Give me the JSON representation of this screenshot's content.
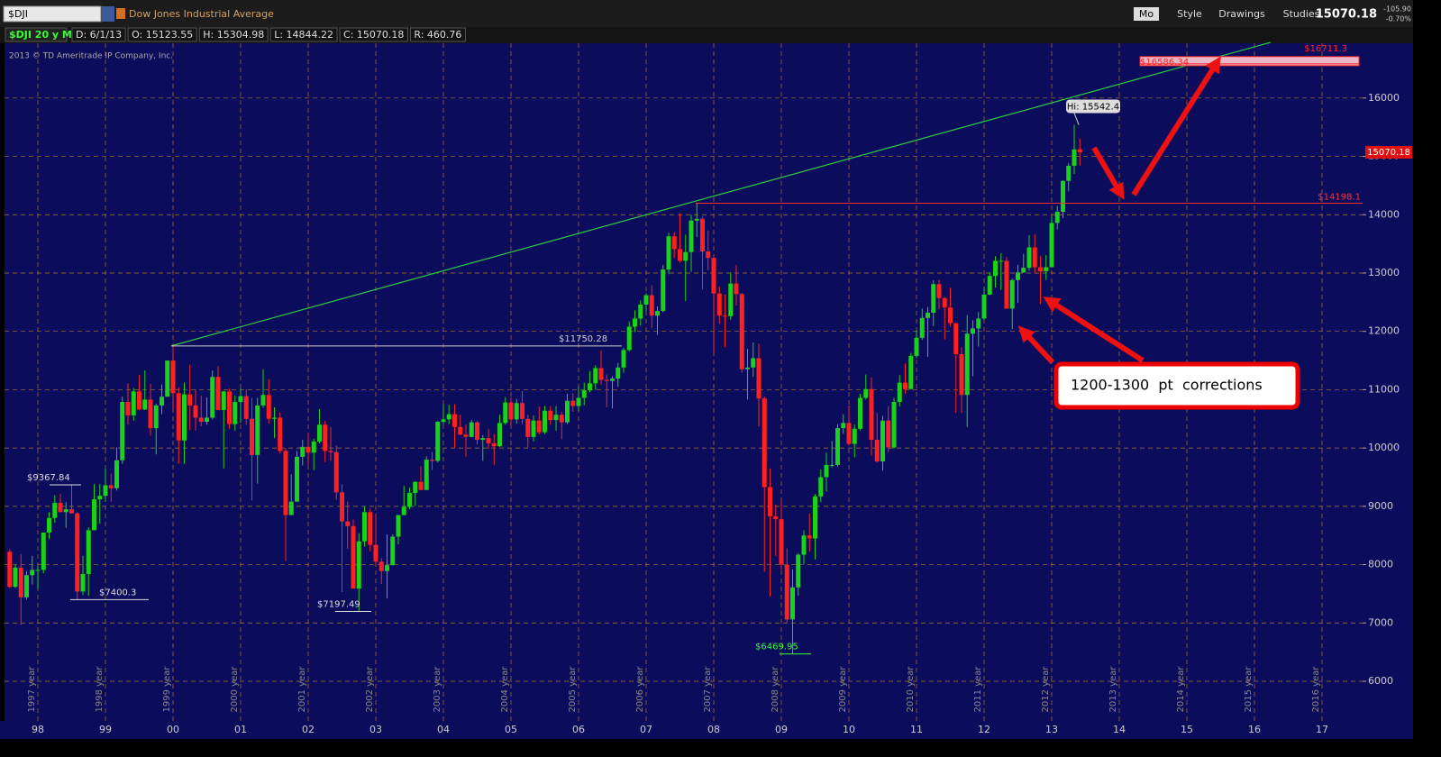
{
  "toolbar": {
    "symbol": "$DJI",
    "description": "Dow Jones Industrial Average",
    "buttons": [
      "Mo",
      "Style",
      "Drawings",
      "Studies"
    ],
    "last": "15070.18",
    "change": "-105.90",
    "change_pct": "-0.70%"
  },
  "chart_data": {
    "type": "candlestick",
    "title": "$DJI 20 y M",
    "info": [
      "D: 6/1/13",
      "O: 15123.55",
      "H: 15304.98",
      "L: 14844.22",
      "C: 15070.18",
      "R: 460.76"
    ],
    "watermark": "2013 © TD Ameritrade IP Company, Inc.",
    "categories": [
      null,
      null,
      null,
      null,
      null,
      "98",
      null,
      null,
      null,
      null,
      null,
      null,
      null,
      null,
      null,
      null,
      null,
      "99",
      null,
      null,
      null,
      null,
      null,
      null,
      null,
      null,
      null,
      null,
      null,
      "00",
      null,
      null,
      null,
      null,
      null,
      null,
      null,
      null,
      null,
      null,
      null,
      "01",
      null,
      null,
      null,
      null,
      null,
      null,
      null,
      null,
      null,
      null,
      null,
      "02",
      null,
      null,
      null,
      null,
      null,
      null,
      null,
      null,
      null,
      null,
      null,
      "03",
      null,
      null,
      null,
      null,
      null,
      null,
      null,
      null,
      null,
      null,
      null,
      "04",
      null,
      null,
      null,
      null,
      null,
      null,
      null,
      null,
      null,
      null,
      null,
      "05",
      null,
      null,
      null,
      null,
      null,
      null,
      null,
      null,
      null,
      null,
      null,
      "06",
      null,
      null,
      null,
      null,
      null,
      null,
      null,
      null,
      null,
      null,
      null,
      "07",
      null,
      null,
      null,
      null,
      null,
      null,
      null,
      null,
      null,
      null,
      null,
      "08",
      null,
      null,
      null,
      null,
      null,
      null,
      null,
      null,
      null,
      null,
      null,
      "09",
      null,
      null,
      null,
      null,
      null,
      null,
      null,
      null,
      null,
      null,
      null,
      "10",
      null,
      null,
      null,
      null,
      null,
      null,
      null,
      null,
      null,
      null,
      null,
      "11",
      null,
      null,
      null,
      null,
      null,
      null,
      null,
      null,
      null,
      null,
      null,
      "12",
      null,
      null,
      null,
      null,
      null,
      null,
      null,
      null,
      null,
      null,
      null,
      "13",
      null,
      null,
      null,
      null,
      null,
      null,
      null,
      null,
      null,
      null,
      null,
      "14",
      null,
      null,
      null,
      null,
      null,
      null,
      null,
      null,
      null,
      null,
      null,
      "15",
      null,
      null,
      null,
      null,
      null,
      null,
      null,
      null,
      null,
      null,
      null,
      "16",
      null,
      null,
      null,
      null,
      null,
      null,
      null,
      null,
      null,
      null,
      null,
      "17",
      null,
      null,
      null,
      null,
      null,
      null
    ],
    "ohlc": [
      [
        8220,
        8260,
        7600,
        7620
      ],
      [
        7620,
        8000,
        7600,
        7950
      ],
      [
        7950,
        8180,
        6970,
        7440
      ],
      [
        7440,
        7890,
        7400,
        7820
      ],
      [
        7820,
        8150,
        7660,
        7910
      ],
      [
        7910,
        7980,
        7580,
        7910
      ],
      [
        7910,
        8550,
        7850,
        8550
      ],
      [
        8550,
        8900,
        8440,
        8800
      ],
      [
        8800,
        9190,
        8720,
        9060
      ],
      [
        9060,
        9210,
        8900,
        8900
      ],
      [
        8900,
        9070,
        8630,
        8950
      ],
      [
        8950,
        9367.84,
        8880,
        8880
      ],
      [
        8880,
        8900,
        7400.3,
        7540
      ],
      [
        7540,
        8150,
        7480,
        7840
      ],
      [
        7840,
        8640,
        7470,
        8590
      ],
      [
        8590,
        9380,
        8590,
        9120
      ],
      [
        9120,
        9380,
        8700,
        9180
      ],
      [
        9180,
        9650,
        9080,
        9360
      ],
      [
        9360,
        9560,
        9080,
        9310
      ],
      [
        9310,
        10010,
        9270,
        9790
      ],
      [
        9790,
        10880,
        9730,
        10790
      ],
      [
        10790,
        11110,
        10400,
        10560
      ],
      [
        10560,
        11030,
        10470,
        10970
      ],
      [
        10970,
        11250,
        10650,
        10660
      ],
      [
        10660,
        11330,
        10650,
        10830
      ],
      [
        10830,
        11100,
        10210,
        10340
      ],
      [
        10340,
        10760,
        9890,
        10730
      ],
      [
        10730,
        11090,
        10580,
        10880
      ],
      [
        10880,
        11500,
        10900,
        11500
      ],
      [
        11500,
        11750.28,
        10660,
        10940
      ],
      [
        10940,
        11040,
        9730,
        10130
      ],
      [
        10130,
        11120,
        9730,
        10920
      ],
      [
        10920,
        11430,
        10310,
        10730
      ],
      [
        10730,
        11000,
        10300,
        10520
      ],
      [
        10520,
        10900,
        10370,
        10450
      ],
      [
        10450,
        10870,
        10400,
        10520
      ],
      [
        10520,
        11330,
        10490,
        11220
      ],
      [
        11220,
        11400,
        10650,
        10650
      ],
      [
        10650,
        10980,
        9650,
        10970
      ],
      [
        10970,
        11020,
        10330,
        10410
      ],
      [
        10410,
        10900,
        10300,
        10790
      ],
      [
        10790,
        11020,
        10430,
        10890
      ],
      [
        10890,
        11010,
        10400,
        10500
      ],
      [
        10500,
        10860,
        9100,
        9880
      ],
      [
        9880,
        10860,
        9390,
        10730
      ],
      [
        10730,
        11350,
        10690,
        10910
      ],
      [
        10910,
        11180,
        10420,
        10500
      ],
      [
        10500,
        10700,
        10170,
        10520
      ],
      [
        10520,
        10610,
        9910,
        9950
      ],
      [
        9950,
        10000,
        8060,
        8850
      ],
      [
        8850,
        9550,
        8850,
        9080
      ],
      [
        9080,
        9950,
        9080,
        9850
      ],
      [
        9850,
        10140,
        9700,
        10020
      ],
      [
        10020,
        10260,
        9710,
        9920
      ],
      [
        9920,
        10160,
        9620,
        10110
      ],
      [
        10110,
        10670,
        10080,
        10400
      ],
      [
        10400,
        10470,
        9760,
        9950
      ],
      [
        9950,
        10360,
        9780,
        9930
      ],
      [
        9930,
        10040,
        9110,
        9240
      ],
      [
        9240,
        9380,
        7530,
        8740
      ],
      [
        8740,
        9080,
        8270,
        8660
      ],
      [
        8660,
        8770,
        7590,
        7590
      ],
      [
        7590,
        8540,
        7197.49,
        8400
      ],
      [
        8400,
        9000,
        8310,
        8900
      ],
      [
        8900,
        8960,
        8230,
        8340
      ],
      [
        8340,
        8870,
        7990,
        8050
      ],
      [
        8050,
        8110,
        7670,
        7890
      ],
      [
        7890,
        8520,
        7420,
        7990
      ],
      [
        7990,
        8520,
        7990,
        8480
      ],
      [
        8480,
        8850,
        8350,
        8850
      ],
      [
        8850,
        9350,
        8850,
        8990
      ],
      [
        8990,
        9320,
        8950,
        9230
      ],
      [
        9230,
        9430,
        9010,
        9420
      ],
      [
        9420,
        9690,
        9280,
        9280
      ],
      [
        9280,
        9860,
        9280,
        9800
      ],
      [
        9800,
        9930,
        9620,
        9780
      ],
      [
        9780,
        10460,
        9750,
        10450
      ],
      [
        10450,
        10750,
        10410,
        10490
      ],
      [
        10490,
        10740,
        10410,
        10580
      ],
      [
        10580,
        10750,
        10000,
        10360
      ],
      [
        10360,
        10570,
        10220,
        10230
      ],
      [
        10230,
        10400,
        9850,
        10190
      ],
      [
        10190,
        10480,
        10180,
        10440
      ],
      [
        10440,
        10460,
        10060,
        10140
      ],
      [
        10140,
        10220,
        9780,
        10170
      ],
      [
        10170,
        10330,
        9990,
        10080
      ],
      [
        10080,
        10240,
        9710,
        10030
      ],
      [
        10030,
        10570,
        10020,
        10430
      ],
      [
        10430,
        10870,
        10400,
        10780
      ],
      [
        10780,
        10870,
        10370,
        10490
      ],
      [
        10490,
        10840,
        10420,
        10770
      ],
      [
        10770,
        10980,
        10410,
        10500
      ],
      [
        10500,
        10570,
        10010,
        10190
      ],
      [
        10190,
        10560,
        10110,
        10470
      ],
      [
        10470,
        10710,
        10230,
        10270
      ],
      [
        10270,
        10720,
        10240,
        10640
      ],
      [
        10640,
        10720,
        10400,
        10480
      ],
      [
        10480,
        10720,
        10300,
        10570
      ],
      [
        10570,
        10620,
        10150,
        10440
      ],
      [
        10440,
        10930,
        10410,
        10810
      ],
      [
        10810,
        10940,
        10620,
        10720
      ],
      [
        10720,
        11050,
        10640,
        10860
      ],
      [
        10860,
        11120,
        10730,
        10990
      ],
      [
        10990,
        11320,
        10960,
        11110
      ],
      [
        11110,
        11420,
        11000,
        11370
      ],
      [
        11370,
        11670,
        11080,
        11170
      ],
      [
        11170,
        11260,
        10700,
        11150
      ],
      [
        11150,
        11230,
        10680,
        11190
      ],
      [
        11190,
        11460,
        11050,
        11380
      ],
      [
        11380,
        11720,
        11290,
        11680
      ],
      [
        11680,
        12170,
        11660,
        12080
      ],
      [
        12080,
        12360,
        11990,
        12220
      ],
      [
        12220,
        12530,
        12100,
        12460
      ],
      [
        12460,
        12650,
        12340,
        12620
      ],
      [
        12620,
        12790,
        12050,
        12270
      ],
      [
        12270,
        12430,
        11940,
        12350
      ],
      [
        12350,
        13140,
        12330,
        13060
      ],
      [
        13060,
        13690,
        12980,
        13630
      ],
      [
        13630,
        13700,
        13260,
        13410
      ],
      [
        13410,
        14020,
        13180,
        13210
      ],
      [
        13210,
        13660,
        12520,
        13360
      ],
      [
        13360,
        14000,
        13020,
        13900
      ],
      [
        13900,
        14198.1,
        13620,
        13930
      ],
      [
        13930,
        13970,
        12720,
        13370
      ],
      [
        13370,
        13730,
        13050,
        13260
      ],
      [
        13260,
        13280,
        11630,
        12650
      ],
      [
        12650,
        12770,
        12130,
        12270
      ],
      [
        12270,
        12630,
        11730,
        12260
      ],
      [
        12260,
        13010,
        12200,
        12820
      ],
      [
        12820,
        13140,
        12440,
        12640
      ],
      [
        12640,
        12660,
        11290,
        11350
      ],
      [
        11350,
        11700,
        10830,
        11380
      ],
      [
        11380,
        11810,
        11220,
        11540
      ],
      [
        11540,
        11790,
        10370,
        10850
      ],
      [
        10850,
        10880,
        7880,
        9330
      ],
      [
        9330,
        9650,
        7450,
        8830
      ],
      [
        8830,
        9030,
        8150,
        8780
      ],
      [
        8780,
        9090,
        7910,
        8000
      ],
      [
        8000,
        8280,
        7010,
        7060
      ],
      [
        7060,
        7920,
        6469.95,
        7610
      ],
      [
        7610,
        8200,
        7470,
        8170
      ],
      [
        8170,
        8590,
        8010,
        8500
      ],
      [
        8500,
        8880,
        8220,
        8450
      ],
      [
        8450,
        9210,
        8090,
        9170
      ],
      [
        9170,
        9630,
        9070,
        9500
      ],
      [
        9500,
        9920,
        9250,
        9710
      ],
      [
        9710,
        10120,
        9670,
        9710
      ],
      [
        9710,
        10410,
        9680,
        10340
      ],
      [
        10340,
        10580,
        10240,
        10430
      ],
      [
        10430,
        10730,
        10040,
        10070
      ],
      [
        10070,
        10400,
        9840,
        10330
      ],
      [
        10330,
        10930,
        10300,
        10860
      ],
      [
        10860,
        11260,
        10830,
        11010
      ],
      [
        11010,
        11210,
        9870,
        10140
      ],
      [
        10140,
        10600,
        9750,
        9770
      ],
      [
        9770,
        10550,
        9610,
        10470
      ],
      [
        10470,
        10720,
        9930,
        10010
      ],
      [
        10010,
        10860,
        9990,
        10790
      ],
      [
        10790,
        11250,
        10710,
        11120
      ],
      [
        11120,
        11450,
        10930,
        11010
      ],
      [
        11010,
        11630,
        11000,
        11580
      ],
      [
        11580,
        12020,
        11540,
        11890
      ],
      [
        11890,
        12390,
        11850,
        12230
      ],
      [
        12230,
        12420,
        11560,
        12320
      ],
      [
        12320,
        12880,
        12090,
        12810
      ],
      [
        12810,
        12880,
        12380,
        12570
      ],
      [
        12570,
        12590,
        11860,
        12410
      ],
      [
        12410,
        12750,
        12090,
        12140
      ],
      [
        12140,
        12150,
        10600,
        11610
      ],
      [
        11610,
        11730,
        10600,
        10910
      ],
      [
        10910,
        12280,
        10360,
        11960
      ],
      [
        11960,
        12190,
        11230,
        12050
      ],
      [
        12050,
        12330,
        11740,
        12220
      ],
      [
        12220,
        12760,
        12200,
        12630
      ],
      [
        12630,
        13010,
        12620,
        12950
      ],
      [
        12950,
        13290,
        12750,
        13210
      ],
      [
        13210,
        13340,
        12710,
        13210
      ],
      [
        13210,
        13280,
        12390,
        12390
      ],
      [
        12390,
        12900,
        12040,
        12880
      ],
      [
        12880,
        13140,
        12490,
        13010
      ],
      [
        13010,
        13330,
        13000,
        13090
      ],
      [
        13090,
        13650,
        13040,
        13440
      ],
      [
        13440,
        13660,
        12990,
        13100
      ],
      [
        13100,
        13290,
        12470,
        13030
      ],
      [
        13030,
        13310,
        12880,
        13100
      ],
      [
        13100,
        13970,
        13100,
        13860
      ],
      [
        13860,
        14150,
        13750,
        14050
      ],
      [
        14050,
        14590,
        13940,
        14580
      ],
      [
        14580,
        14890,
        14400,
        14840
      ],
      [
        14840,
        15542.4,
        14700,
        15120
      ],
      [
        15123.55,
        15304.98,
        14844.22,
        15070.18
      ],
      null,
      null,
      null,
      null,
      null,
      null,
      null,
      null,
      null,
      null,
      null,
      null,
      null,
      null,
      null,
      null,
      null,
      null,
      null,
      null,
      null,
      null,
      null,
      null,
      null,
      null,
      null,
      null,
      null,
      null,
      null,
      null,
      null,
      null,
      null,
      null,
      null,
      null,
      null,
      null,
      null,
      null,
      null,
      null,
      null,
      null,
      null,
      null,
      null
    ],
    "up_color": "#19d219",
    "down_color": "#ff2020",
    "ylim": [
      5320,
      16940
    ],
    "yticks": [
      6000,
      7000,
      8000,
      9000,
      10000,
      11000,
      12000,
      13000,
      14000,
      15000,
      16000
    ],
    "grid": true,
    "period_labels": [
      "1997 year",
      "1998 year",
      "1999 year",
      "2000 year",
      "2001 year",
      "2002 year",
      "2003 year",
      "2004 year",
      "2005 year",
      "2006 year",
      "2007 year",
      "2008 year",
      "2009 year",
      "2010 year",
      "2011 year",
      "2012 year",
      "2013 year",
      "2014 year",
      "2015 year",
      "2016 year"
    ],
    "annotations": [
      {
        "value": 9367.84,
        "label": "$9367.84"
      },
      {
        "value": 7400.3,
        "label": "$7400.3"
      },
      {
        "value": 7197.49,
        "label": "$7197.49"
      },
      {
        "value": 11750.28,
        "label": "$11750.28"
      },
      {
        "value": 6469.95,
        "label": "$6469.95"
      },
      {
        "value": 14198.1,
        "label": "$14198.1"
      },
      {
        "value": 16711.3,
        "label": "$16711.3"
      },
      {
        "value": 16586.34,
        "label": "$16586.34"
      },
      {
        "value": 15542.4,
        "label": "Hi: 15542.4"
      }
    ],
    "last_price": 15070.18,
    "callout": "1200-1300  pt  corrections"
  }
}
